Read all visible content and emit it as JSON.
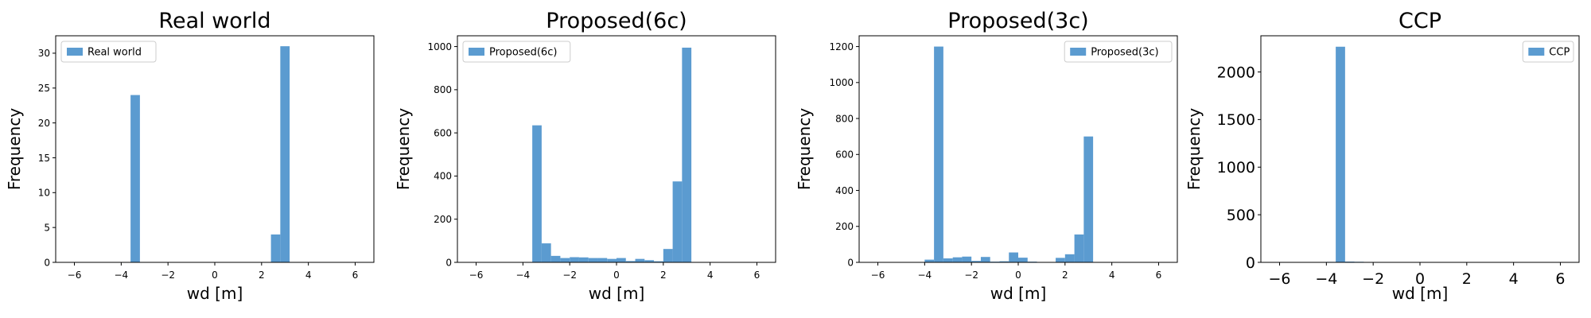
{
  "chart_data": [
    {
      "type": "bar",
      "title": "Real world",
      "xlabel": "wd [m]",
      "ylabel": "Frequency",
      "legend": {
        "label": "Real world",
        "placement": "top-left"
      },
      "xlim": [
        -6.8,
        6.8
      ],
      "ylim": [
        0,
        32.5
      ],
      "xticks": [
        -6,
        -4,
        -2,
        0,
        2,
        4,
        6
      ],
      "yticks": [
        0,
        5,
        10,
        15,
        20,
        25,
        30
      ],
      "bin_width": 0.4,
      "bars": [
        {
          "x0": -3.6,
          "value": 24
        },
        {
          "x0": 2.4,
          "value": 4
        },
        {
          "x0": 2.8,
          "value": 31
        }
      ]
    },
    {
      "type": "bar",
      "title": "Proposed(6c)",
      "xlabel": "wd [m]",
      "ylabel": "Frequency",
      "legend": {
        "label": "Proposed(6c)",
        "placement": "top-left"
      },
      "xlim": [
        -6.8,
        6.8
      ],
      "ylim": [
        0,
        1050
      ],
      "xticks": [
        -6,
        -4,
        -2,
        0,
        2,
        4,
        6
      ],
      "yticks": [
        0,
        200,
        400,
        600,
        800,
        1000
      ],
      "bin_width": 0.4,
      "bars": [
        {
          "x0": -3.6,
          "value": 635
        },
        {
          "x0": -3.2,
          "value": 88
        },
        {
          "x0": -2.8,
          "value": 30
        },
        {
          "x0": -2.4,
          "value": 20
        },
        {
          "x0": -2.0,
          "value": 24
        },
        {
          "x0": -1.6,
          "value": 23
        },
        {
          "x0": -1.2,
          "value": 20
        },
        {
          "x0": -0.8,
          "value": 20
        },
        {
          "x0": -0.4,
          "value": 16
        },
        {
          "x0": 0.0,
          "value": 20
        },
        {
          "x0": 0.4,
          "value": 6
        },
        {
          "x0": 0.8,
          "value": 16
        },
        {
          "x0": 1.2,
          "value": 10
        },
        {
          "x0": 1.6,
          "value": 5
        },
        {
          "x0": 2.0,
          "value": 62
        },
        {
          "x0": 2.4,
          "value": 375
        },
        {
          "x0": 2.8,
          "value": 995
        }
      ]
    },
    {
      "type": "bar",
      "title": "Proposed(3c)",
      "xlabel": "wd [m]",
      "ylabel": "Frequency",
      "legend": {
        "label": "Proposed(3c)",
        "placement": "top-right"
      },
      "xlim": [
        -6.8,
        6.8
      ],
      "ylim": [
        0,
        1260
      ],
      "xticks": [
        -6,
        -4,
        -2,
        0,
        2,
        4,
        6
      ],
      "yticks": [
        0,
        200,
        400,
        600,
        800,
        1000,
        1200
      ],
      "bin_width": 0.4,
      "bars": [
        {
          "x0": -4.0,
          "value": 15
        },
        {
          "x0": -3.6,
          "value": 1200
        },
        {
          "x0": -3.2,
          "value": 22
        },
        {
          "x0": -2.8,
          "value": 28
        },
        {
          "x0": -2.4,
          "value": 32
        },
        {
          "x0": -2.0,
          "value": 8
        },
        {
          "x0": -1.6,
          "value": 30
        },
        {
          "x0": -1.2,
          "value": 4
        },
        {
          "x0": -0.8,
          "value": 6
        },
        {
          "x0": -0.4,
          "value": 55
        },
        {
          "x0": 0.0,
          "value": 26
        },
        {
          "x0": 0.4,
          "value": 4
        },
        {
          "x0": 1.6,
          "value": 25
        },
        {
          "x0": 2.0,
          "value": 45
        },
        {
          "x0": 2.4,
          "value": 155
        },
        {
          "x0": 2.8,
          "value": 700
        }
      ]
    },
    {
      "type": "bar",
      "title": "CCP",
      "xlabel": "wd [m]",
      "ylabel": "Frequency",
      "legend": {
        "label": "CCP",
        "placement": "top-right"
      },
      "xlim": [
        -6.8,
        6.8
      ],
      "ylim": [
        0,
        2380
      ],
      "xticks": [
        -6,
        -4,
        -2,
        0,
        2,
        4,
        6
      ],
      "yticks": [
        0,
        500,
        1000,
        1500,
        2000
      ],
      "bin_width": 0.4,
      "bars": [
        {
          "x0": -4.0,
          "value": 5
        },
        {
          "x0": -3.6,
          "value": 2265
        },
        {
          "x0": -3.2,
          "value": 8
        },
        {
          "x0": -2.8,
          "value": 6
        },
        {
          "x0": -2.4,
          "value": 4
        },
        {
          "x0": -2.0,
          "value": 3
        },
        {
          "x0": -1.6,
          "value": 3
        },
        {
          "x0": -1.2,
          "value": 3
        },
        {
          "x0": -0.8,
          "value": 3
        },
        {
          "x0": -0.4,
          "value": 3
        },
        {
          "x0": 0.0,
          "value": 3
        },
        {
          "x0": 0.4,
          "value": 3
        },
        {
          "x0": 1.2,
          "value": 3
        },
        {
          "x0": 1.6,
          "value": 3
        },
        {
          "x0": 2.0,
          "value": 3
        }
      ]
    }
  ],
  "colors": {
    "bar": "#5b9bd0",
    "axis": "#000000",
    "legend_edge": "#cccccc"
  }
}
